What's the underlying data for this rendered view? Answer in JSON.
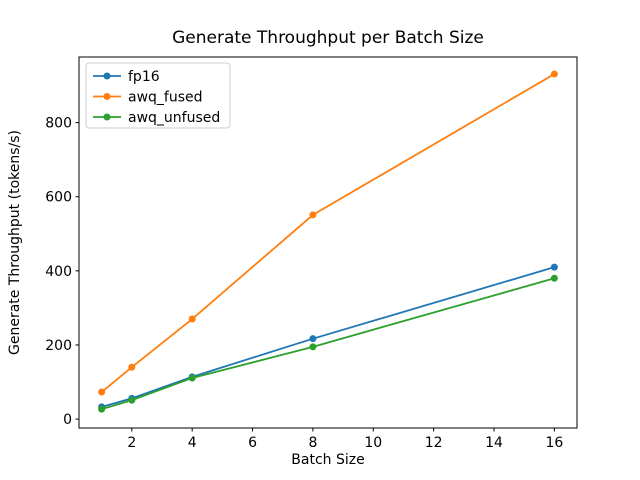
{
  "chart_data": {
    "type": "line",
    "title": "Generate Throughput per Batch Size",
    "xlabel": "Batch Size",
    "ylabel": "Generate Throughput (tokens/s)",
    "x": [
      1,
      2,
      4,
      8,
      16
    ],
    "series": [
      {
        "name": "fp16",
        "color": "#1f77b4",
        "values": [
          33,
          56,
          114,
          217,
          410
        ]
      },
      {
        "name": "awq_fused",
        "color": "#ff7f0e",
        "values": [
          73,
          140,
          270,
          551,
          931
        ]
      },
      {
        "name": "awq_unfused",
        "color": "#2ca02c",
        "values": [
          27,
          51,
          111,
          195,
          380
        ]
      }
    ],
    "marker": "o",
    "xticks": [
      2,
      4,
      6,
      8,
      10,
      12,
      14,
      16
    ],
    "yticks": [
      0,
      200,
      400,
      600,
      800
    ],
    "xlim": [
      0.25,
      16.75
    ],
    "ylim": [
      -24,
      977
    ],
    "grid": false,
    "legend": {
      "position": "upper left",
      "entries": [
        "fp16",
        "awq_fused",
        "awq_unfused"
      ]
    }
  }
}
